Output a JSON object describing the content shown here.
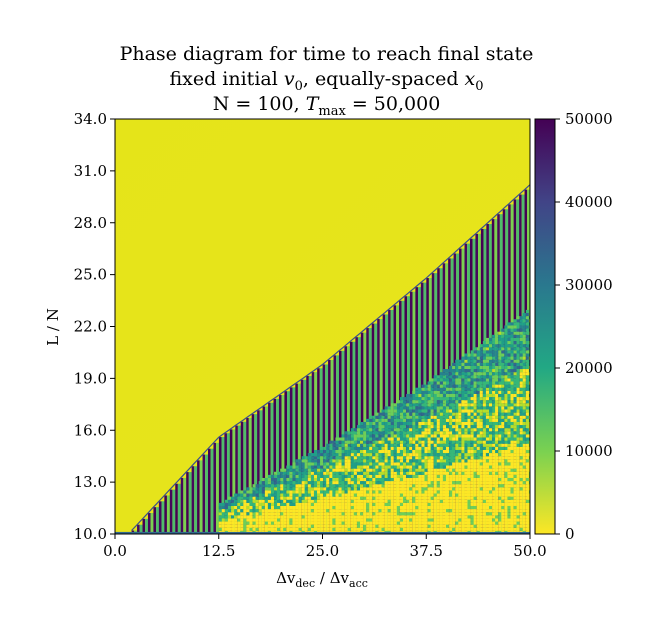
{
  "chart_data": {
    "type": "heatmap",
    "title_lines": [
      "Phase diagram for time to reach final state",
      "fixed initial v0, equally-spaced x0",
      "N = 100, Tmax = 50,000"
    ],
    "title_parts": {
      "line2_prefix": "fixed initial ",
      "line2_var": "v",
      "line2_sub": "0",
      "line2_mid": ", equally-spaced ",
      "line2_var2": "x",
      "line2_sub2": "0",
      "line3_prefix": "N = 100, ",
      "line3_var": "T",
      "line3_sub": "max",
      "line3_suffix": " = 50,000"
    },
    "xlabel": "Δvdec / Δvacc",
    "xlabel_parts": {
      "a": "Δv",
      "a_sub": "dec",
      "sep": " / ",
      "b": "Δv",
      "b_sub": "acc"
    },
    "ylabel": "L / N",
    "xlim": [
      0,
      50
    ],
    "ylim": [
      10,
      34
    ],
    "x_ticks": [
      "0.0",
      "12.5",
      "25.0",
      "37.5",
      "50.0"
    ],
    "x_tick_values": [
      0,
      12.5,
      25,
      37.5,
      50
    ],
    "y_ticks": [
      "10.0",
      "13.0",
      "16.0",
      "19.0",
      "22.0",
      "25.0",
      "28.0",
      "31.0",
      "34.0"
    ],
    "y_tick_values": [
      10,
      13,
      16,
      19,
      22,
      25,
      28,
      31,
      34
    ],
    "colorbar": {
      "range": [
        0,
        50000
      ],
      "ticks": [
        "0",
        "10000",
        "20000",
        "30000",
        "40000",
        "50000"
      ],
      "tick_values": [
        0,
        10000,
        20000,
        30000,
        40000,
        50000
      ],
      "colormap": "viridis-reversed"
    },
    "regions": {
      "upper_left": 200,
      "boundary_line": {
        "x": [
          2,
          12.5,
          25,
          37.5,
          50
        ],
        "y": [
          10.2,
          15.6,
          19.8,
          24.8,
          30.2
        ]
      },
      "striped_band_value": 50000,
      "scatter_region_values": [
        5000,
        30000
      ],
      "lower_bound_line": {
        "x": [
          12.5,
          25,
          37.5,
          50
        ],
        "y": [
          10.2,
          13.5,
          17.2,
          21.5
        ]
      }
    },
    "colors": {
      "yellow": "#fde725",
      "purple": "#440154",
      "green": "#35b779",
      "teal": "#21918c"
    }
  }
}
